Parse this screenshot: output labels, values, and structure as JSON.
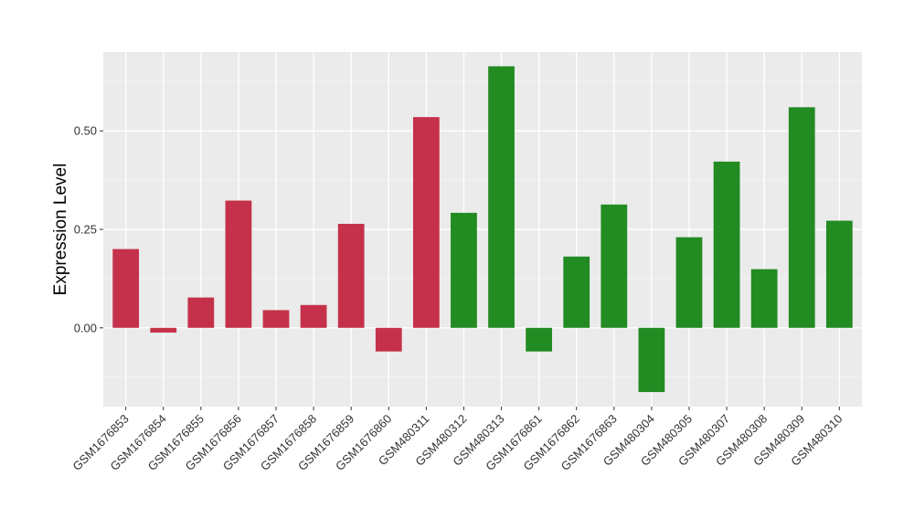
{
  "chart_data": {
    "type": "bar",
    "title": "",
    "xlabel": "",
    "ylabel": "Expression Level",
    "ylim": [
      -0.2,
      0.7
    ],
    "yticks": [
      0.0,
      0.25,
      0.5
    ],
    "ytick_labels": [
      "0.00",
      "0.25",
      "0.50"
    ],
    "grid": true,
    "panel_background": "#ebebeb",
    "categories": [
      "GSM1676853",
      "GSM1676854",
      "GSM1676855",
      "GSM1676856",
      "GSM1676857",
      "GSM1676858",
      "GSM1676859",
      "GSM1676860",
      "GSM480311",
      "GSM480312",
      "GSM480313",
      "GSM1676861",
      "GSM1676862",
      "GSM1676863",
      "GSM480304",
      "GSM480305",
      "GSM480307",
      "GSM480308",
      "GSM480309",
      "GSM480310"
    ],
    "values": [
      0.2,
      -0.012,
      0.077,
      0.323,
      0.045,
      0.058,
      0.264,
      -0.06,
      0.535,
      0.292,
      0.664,
      -0.06,
      0.181,
      0.313,
      -0.163,
      0.23,
      0.422,
      0.149,
      0.56,
      0.272
    ],
    "groups": [
      "red",
      "red",
      "red",
      "red",
      "red",
      "red",
      "red",
      "red",
      "red",
      "green",
      "green",
      "green",
      "green",
      "green",
      "green",
      "green",
      "green",
      "green",
      "green",
      "green"
    ],
    "colors": {
      "red": "#c5314a",
      "green": "#228b22"
    }
  }
}
